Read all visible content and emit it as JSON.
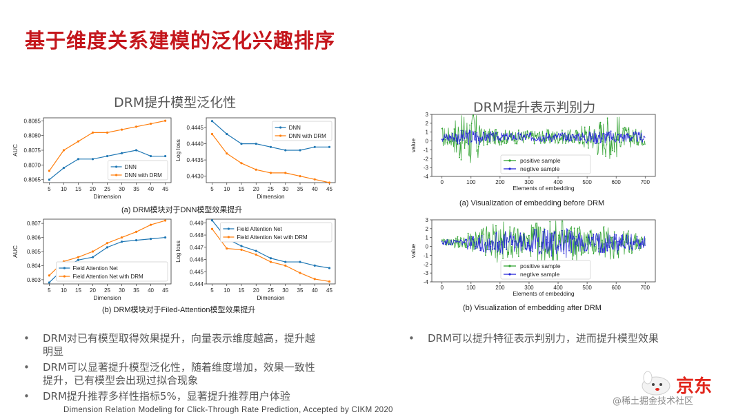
{
  "page": {
    "title": "基于维度关系建模的泛化兴趣排序",
    "left_section_title": "DRM提升模型泛化性",
    "right_section_title": "DRM提升表示判别力",
    "caption_a_left": "(a)  DRM模块对于DNN模型效果提升",
    "caption_b_left": "(b)  DRM模块对于Filed-Attention模型效果提升",
    "caption_a_right": "(a) Visualization of embedding before DRM",
    "caption_b_right": "(b) Visualization of embedding after DRM",
    "bullets_left": [
      "DRM对已有模型取得效果提升，向量表示维度越高，提升越明显",
      "DRM可以显著提升模型泛化性，随着维度增加，效果一致性提升，已有模型会出现过拟合现象",
      "DRM提升推荐多样性指标5%，显著提升推荐用户体验"
    ],
    "bullets_right": [
      "DRM可以提升特征表示判别力，进而提升模型效果"
    ],
    "footer": "Dimension Relation Modeling for Click-Through Rate Prediction,  Accepted by CIKM 2020",
    "brand": "京东",
    "watermark": "@稀土掘金技术社区"
  },
  "colors": {
    "title": "#c4161c",
    "series_base": "#1f77b4",
    "series_drm": "#ff7f0e",
    "positive": "#2ca02c",
    "negative": "#1f1fd6"
  },
  "chart_data": [
    {
      "type": "line",
      "x": [
        5,
        10,
        15,
        20,
        25,
        30,
        35,
        40,
        45
      ],
      "xlabel": "Dimension",
      "ylabel": "AUC",
      "ylim": [
        0.8064,
        0.8086
      ],
      "yticks": [
        "0.8065",
        "0.8070",
        "0.8075",
        "0.8080",
        "0.8085"
      ],
      "xticks": [
        "5",
        "10",
        "15",
        "20",
        "25",
        "30",
        "35",
        "40",
        "45"
      ],
      "legend": "bottom-right",
      "series": [
        {
          "name": "DNN",
          "values": [
            0.8065,
            0.8069,
            0.8072,
            0.8072,
            0.8073,
            0.8074,
            0.8075,
            0.8073,
            0.8073
          ]
        },
        {
          "name": "DNN with DRM",
          "values": [
            0.8068,
            0.8075,
            0.8078,
            0.8081,
            0.8081,
            0.8082,
            0.8083,
            0.8084,
            0.8085
          ]
        }
      ]
    },
    {
      "type": "line",
      "x": [
        5,
        10,
        15,
        20,
        25,
        30,
        35,
        40,
        45
      ],
      "xlabel": "Dimension",
      "ylabel": "Log loss",
      "ylim": [
        0.4428,
        0.4448
      ],
      "yticks": [
        "0.4430",
        "0.4435",
        "0.4440",
        "0.4445"
      ],
      "xticks": [
        "5",
        "10",
        "15",
        "20",
        "25",
        "30",
        "35",
        "40",
        "45"
      ],
      "legend": "top-right",
      "series": [
        {
          "name": "DNN",
          "values": [
            0.4447,
            0.4443,
            0.444,
            0.444,
            0.4439,
            0.4438,
            0.4438,
            0.4439,
            0.4439
          ]
        },
        {
          "name": "DNN with DRM",
          "values": [
            0.4443,
            0.4437,
            0.4434,
            0.4432,
            0.4431,
            0.4431,
            0.443,
            0.4429,
            0.4428
          ]
        }
      ]
    },
    {
      "type": "line",
      "x": [
        5,
        10,
        15,
        20,
        25,
        30,
        35,
        40,
        45
      ],
      "xlabel": "Dimension",
      "ylabel": "AUC",
      "ylim": [
        0.8027,
        0.8073
      ],
      "yticks": [
        "0.803",
        "0.804",
        "0.805",
        "0.806",
        "0.807"
      ],
      "xticks": [
        "5",
        "10",
        "15",
        "20",
        "25",
        "30",
        "35",
        "40",
        "45"
      ],
      "legend": "bottom-right",
      "series": [
        {
          "name": "Field Attention Net",
          "values": [
            0.8028,
            0.8038,
            0.8044,
            0.8046,
            0.8053,
            0.8057,
            0.8058,
            0.8059,
            0.806
          ]
        },
        {
          "name": "Field Attention Net with DRM",
          "values": [
            0.8033,
            0.8043,
            0.8046,
            0.805,
            0.8056,
            0.806,
            0.8064,
            0.8069,
            0.8072
          ]
        }
      ]
    },
    {
      "type": "line",
      "x": [
        5,
        10,
        15,
        20,
        25,
        30,
        35,
        40,
        45
      ],
      "xlabel": "Dimension",
      "ylabel": "Log loss",
      "ylim": [
        0.444,
        0.4493
      ],
      "yticks": [
        "0.444",
        "0.445",
        "0.446",
        "0.447",
        "0.448",
        "0.449"
      ],
      "xticks": [
        "5",
        "10",
        "15",
        "20",
        "25",
        "30",
        "35",
        "40",
        "45"
      ],
      "legend": "top-right",
      "series": [
        {
          "name": "Field Attention Net",
          "values": [
            0.4492,
            0.4477,
            0.4471,
            0.4467,
            0.4461,
            0.4458,
            0.4458,
            0.4455,
            0.4453
          ]
        },
        {
          "name": "Field Attention Net with DRM",
          "values": [
            0.4485,
            0.4469,
            0.4468,
            0.4464,
            0.4458,
            0.4455,
            0.4449,
            0.4444,
            0.4442
          ]
        }
      ]
    },
    {
      "type": "line",
      "xlabel": "Elements of embedding",
      "ylabel": "value",
      "xlim": [
        0,
        700
      ],
      "ylim": [
        -4,
        3
      ],
      "xticks": [
        "0",
        "100",
        "200",
        "300",
        "400",
        "500",
        "600",
        "700"
      ],
      "yticks": [
        "-4",
        "-3",
        "-2",
        "-1",
        "0",
        "1",
        "2",
        "3"
      ],
      "legend": "bottom-center",
      "series": [
        {
          "name": "positive sample",
          "amplitude_profile": [
            1.2,
            2.8,
            3.5,
            1.0,
            0.9,
            0.8,
            0.8,
            0.8,
            0.9,
            0.8,
            0.9,
            1.5,
            2.2,
            2.5,
            1.2,
            1.0
          ]
        },
        {
          "name": "negtive sample",
          "amplitude_profile": [
            0.6,
            0.8,
            1.0,
            0.6,
            0.5,
            0.5,
            0.5,
            0.5,
            0.5,
            0.5,
            0.5,
            0.7,
            0.8,
            0.7,
            0.6,
            0.6
          ]
        }
      ]
    },
    {
      "type": "line",
      "xlabel": "Elements of embedding",
      "ylabel": "value",
      "xlim": [
        0,
        700
      ],
      "ylim": [
        -4,
        3
      ],
      "xticks": [
        "0",
        "100",
        "200",
        "300",
        "400",
        "500",
        "600",
        "700"
      ],
      "yticks": [
        "-4",
        "-3",
        "-2",
        "-1",
        "0",
        "1",
        "2",
        "3"
      ],
      "legend": "bottom-center",
      "series": [
        {
          "name": "positive sample",
          "amplitude_profile": [
            0.4,
            0.7,
            1.2,
            2.0,
            2.4,
            1.8,
            1.6,
            2.3,
            2.5,
            2.8,
            2.2,
            1.6,
            1.8,
            2.0,
            1.4,
            1.1
          ]
        },
        {
          "name": "negtive sample",
          "amplitude_profile": [
            0.3,
            0.4,
            0.8,
            1.3,
            1.4,
            1.2,
            1.1,
            1.5,
            1.6,
            1.8,
            1.4,
            1.1,
            1.2,
            1.3,
            1.0,
            0.8
          ]
        }
      ]
    }
  ]
}
